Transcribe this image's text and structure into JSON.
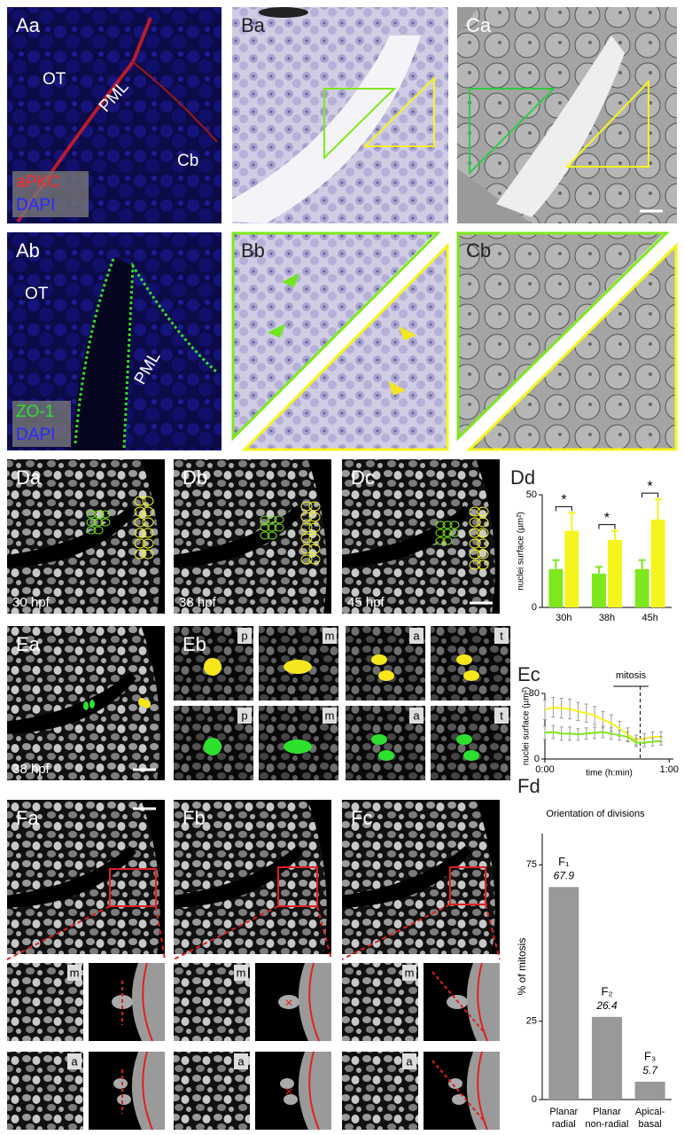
{
  "figure": {
    "Aa": {
      "label": "Aa",
      "annotations": [
        "OT",
        "PML",
        "Cb"
      ],
      "stain": [
        "aPKC",
        "DAPI"
      ]
    },
    "Ba": {
      "label": "Ba"
    },
    "Ca": {
      "label": "Ca"
    },
    "Ab": {
      "label": "Ab",
      "annotations": [
        "OT",
        "PML"
      ],
      "stain": [
        "ZO-1",
        "DAPI"
      ]
    },
    "Bb": {
      "label": "Bb"
    },
    "Cb": {
      "label": "Cb"
    },
    "Da": {
      "label": "Da",
      "stage": "30 hpf"
    },
    "Db": {
      "label": "Db",
      "stage": "38 hpf"
    },
    "Dc": {
      "label": "Dc",
      "stage": "45 hpf"
    },
    "Ea": {
      "label": "Ea",
      "stage": "38 hpf"
    },
    "Eb": {
      "label": "Eb",
      "phases": [
        [
          "p",
          "m",
          "a",
          "t"
        ],
        [
          "p",
          "m",
          "a",
          "t"
        ]
      ]
    },
    "Fa": {
      "label": "Fa",
      "phases": [
        "m",
        "a"
      ]
    },
    "Fb": {
      "label": "Fb",
      "phases": [
        "m",
        "a"
      ]
    },
    "Fc": {
      "label": "Fc",
      "phases": [
        "m",
        "a"
      ]
    }
  },
  "chart_data": [
    {
      "type": "bar",
      "label": "Dd",
      "y_label": "nuclei surface (µm²)",
      "categories": [
        "30h",
        "38h",
        "45h"
      ],
      "series": [
        {
          "color": "#7ee81e",
          "values": [
            17,
            15,
            17
          ],
          "errors": [
            4,
            3,
            4
          ]
        },
        {
          "color": "#f5f51e",
          "values": [
            34,
            30,
            39
          ],
          "errors": [
            8,
            4,
            9
          ]
        }
      ],
      "significance": [
        "*",
        "*",
        "*"
      ],
      "ylim": [
        0,
        50
      ],
      "yticks": [
        0,
        50
      ]
    },
    {
      "type": "line",
      "label": "Ec",
      "y_label": "nuclei surface (µm²)",
      "x_label": "time (h:min)",
      "x": [
        0,
        4,
        8,
        12,
        16,
        20,
        24,
        28,
        32,
        36,
        40,
        44,
        48,
        52,
        56
      ],
      "series": [
        {
          "color": "#f5f51e",
          "values": [
            60,
            63,
            62,
            61,
            58,
            56,
            53,
            48,
            44,
            37,
            30,
            23,
            25,
            27,
            27
          ],
          "errors": [
            12,
            12,
            12,
            12,
            11,
            11,
            11,
            10,
            10,
            9,
            8,
            6,
            6,
            6,
            6
          ]
        },
        {
          "color": "#7ee81e",
          "values": [
            32,
            33,
            31,
            31,
            30,
            31,
            32,
            33,
            31,
            29,
            27,
            20,
            20,
            21,
            22
          ],
          "errors": [
            8,
            8,
            8,
            8,
            7,
            7,
            7,
            7,
            7,
            6,
            6,
            5,
            5,
            5,
            5
          ]
        }
      ],
      "annotation": {
        "text": "mitosis",
        "x": 46,
        "from": 33,
        "to": 50
      },
      "xlim": [
        0,
        62
      ],
      "xticks": [
        {
          "value": 0,
          "label": "0:00"
        },
        {
          "value": 60,
          "label": "1:00"
        }
      ],
      "ylim": [
        0,
        80
      ],
      "yticks": [
        0,
        80
      ]
    },
    {
      "type": "bar",
      "label": "Fd",
      "title": "Orientation of divisions",
      "y_label": "% of mitosis",
      "categories": [
        [
          "Planar",
          "radial"
        ],
        [
          "Planar",
          "non-radial"
        ],
        [
          "Apical-",
          "basal"
        ]
      ],
      "bar_labels": [
        "F₁",
        "F₂",
        "F₃"
      ],
      "values": [
        67.9,
        26.4,
        5.7
      ],
      "color": "#999999",
      "ylim": [
        0,
        85
      ],
      "yticks": [
        0,
        25,
        75
      ]
    }
  ]
}
